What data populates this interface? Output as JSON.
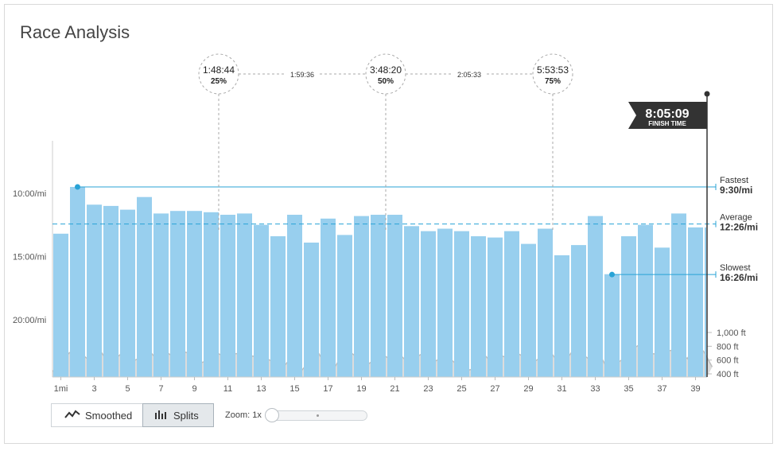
{
  "title": "Race Analysis",
  "controls": {
    "smoothed_label": "Smoothed",
    "splits_label": "Splits",
    "zoom_label": "Zoom: 1x",
    "active_view": "Splits",
    "zoom_level": 1
  },
  "colors": {
    "bar": "#98cfee",
    "accent": "#29a3d6",
    "elevation_fill": "#dcdcdc",
    "elevation_stroke": "#bdbdbd",
    "flag": "#333333"
  },
  "finish": {
    "time": "8:05:09",
    "label": "FINISH TIME",
    "mile": 39.6
  },
  "checkpoints": [
    {
      "time": "1:48:44",
      "pct": "25%",
      "mile": 10
    },
    {
      "time": "3:48:20",
      "pct": "50%",
      "mile": 20
    },
    {
      "time": "5:53:53",
      "pct": "75%",
      "mile": 30
    }
  ],
  "intervals": [
    {
      "text": "1:59:36",
      "from": 0,
      "to": 1
    },
    {
      "text": "2:05:33",
      "from": 1,
      "to": 2
    }
  ],
  "reference_lines": [
    {
      "name": "Fastest",
      "value": "9:30/mi",
      "pace": 9.5,
      "mile": 2,
      "style": "solid"
    },
    {
      "name": "Average",
      "value": "12:26/mi",
      "pace": 12.43,
      "style": "dashed"
    },
    {
      "name": "Slowest",
      "value": "16:26/mi",
      "pace": 16.43,
      "mile": 34,
      "style": "solid"
    }
  ],
  "chart_data": {
    "type": "bar",
    "ylabel": "",
    "xlabel": "",
    "pace_ticks": [
      "10:00/mi",
      "15:00/mi",
      "20:00/mi"
    ],
    "pace_tick_values": [
      10,
      15,
      20
    ],
    "x_ticks": [
      "1mi",
      "3",
      "5",
      "7",
      "9",
      "11",
      "13",
      "15",
      "17",
      "19",
      "21",
      "23",
      "25",
      "27",
      "29",
      "31",
      "33",
      "35",
      "37",
      "39"
    ],
    "x_tick_miles": [
      1,
      3,
      5,
      7,
      9,
      11,
      13,
      15,
      17,
      19,
      21,
      23,
      25,
      27,
      29,
      31,
      33,
      35,
      37,
      39
    ],
    "miles": [
      1,
      2,
      3,
      4,
      5,
      6,
      7,
      8,
      9,
      10,
      11,
      12,
      13,
      14,
      15,
      16,
      17,
      18,
      19,
      20,
      21,
      22,
      23,
      24,
      25,
      26,
      27,
      28,
      29,
      30,
      31,
      32,
      33,
      34,
      35,
      36,
      37,
      38,
      39,
      40
    ],
    "pace_min_per_mile": [
      13.2,
      9.5,
      10.9,
      11.0,
      11.3,
      10.3,
      11.6,
      11.4,
      11.4,
      11.5,
      11.7,
      11.6,
      12.5,
      13.4,
      11.7,
      13.9,
      12.0,
      13.3,
      11.8,
      11.7,
      11.7,
      12.6,
      13.0,
      12.8,
      13.0,
      13.4,
      13.5,
      13.0,
      14.0,
      12.8,
      14.9,
      14.1,
      11.8,
      16.4,
      13.4,
      12.5,
      14.3,
      11.6,
      12.7,
      12.7
    ],
    "elevation_ticks": [
      "1,000 ft",
      "800 ft",
      "600 ft",
      "400 ft"
    ],
    "elevation_tick_values": [
      1000,
      800,
      600,
      400
    ],
    "elevation_mile": [
      0,
      1,
      1.5,
      2,
      2.5,
      3,
      3.5,
      4,
      4.5,
      5,
      5.5,
      6,
      6.5,
      7,
      7.5,
      8,
      8.5,
      9,
      9.5,
      10,
      10.5,
      11,
      11.5,
      12,
      12.5,
      13,
      13.5,
      14,
      14.5,
      15,
      15.5,
      16,
      16.5,
      17,
      17.5,
      18,
      18.5,
      19,
      19.5,
      20,
      20.5,
      21,
      21.5,
      22,
      22.5,
      23,
      23.5,
      24,
      24.5,
      25,
      25.5,
      26,
      26.5,
      27,
      27.5,
      28,
      28.5,
      29,
      29.5,
      30,
      30.5,
      31,
      31.5,
      32,
      32.5,
      33,
      33.5,
      34,
      34.5,
      35,
      35.5,
      36,
      36.5,
      37,
      37.5,
      38,
      38.5,
      39,
      39.5,
      40
    ],
    "elevation_ft": [
      430,
      700,
      780,
      640,
      560,
      700,
      520,
      660,
      750,
      600,
      650,
      700,
      560,
      700,
      620,
      720,
      680,
      560,
      600,
      700,
      640,
      690,
      700,
      660,
      650,
      620,
      560,
      500,
      640,
      420,
      560,
      750,
      560,
      450,
      650,
      720,
      640,
      520,
      600,
      680,
      610,
      690,
      580,
      640,
      700,
      560,
      620,
      640,
      540,
      440,
      470,
      720,
      600,
      680,
      640,
      720,
      660,
      550,
      620,
      780,
      620,
      560,
      720,
      700,
      620,
      760,
      540,
      520,
      600,
      740,
      810,
      700,
      690,
      720,
      740,
      700,
      620,
      850,
      720,
      500
    ],
    "pace_range": [
      5,
      24
    ],
    "elevation_range": [
      400,
      1000
    ]
  }
}
